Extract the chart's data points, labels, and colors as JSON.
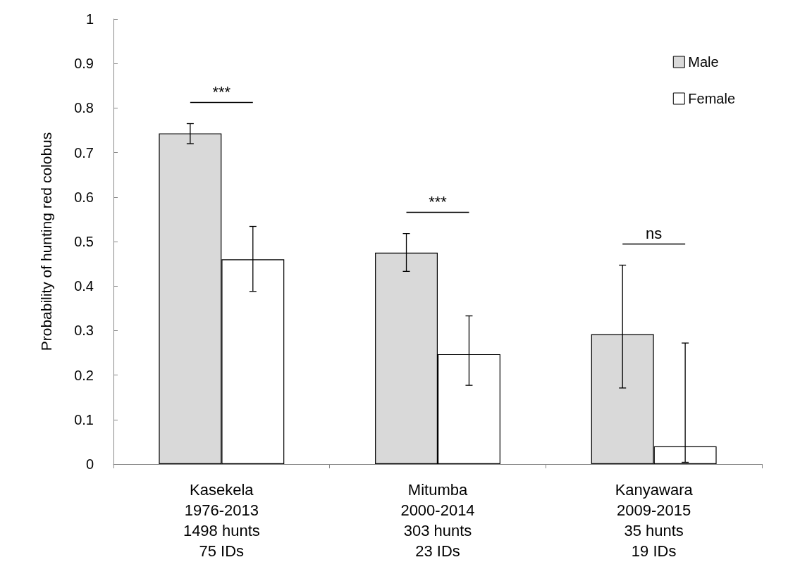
{
  "chart_data": {
    "type": "bar",
    "ylabel": "Probability of hunting red colobus",
    "categories": [
      "Kasekela\n1976-2013\n1498 hunts\n75 IDs",
      "Mitumba\n2000-2014\n303 hunts\n23 IDs",
      "Kanyawara\n2009-2015\n35 hunts\n19 IDs"
    ],
    "series": [
      {
        "name": "Male",
        "color": "#d9d9d9",
        "values": [
          0.743,
          0.475,
          0.292
        ],
        "errors": [
          [
            0.72,
            0.765
          ],
          [
            0.433,
            0.518
          ],
          [
            0.171,
            0.447
          ]
        ]
      },
      {
        "name": "Female",
        "color": "#ffffff",
        "values": [
          0.46,
          0.247,
          0.04
        ],
        "errors": [
          [
            0.388,
            0.534
          ],
          [
            0.177,
            0.333
          ],
          [
            0.004,
            0.272
          ]
        ]
      }
    ],
    "annotations": [
      "***",
      "***",
      "ns"
    ],
    "ylim": [
      0,
      1
    ],
    "yticks": [
      0,
      0.1,
      0.2,
      0.3,
      0.4,
      0.5,
      0.6,
      0.7,
      0.8,
      0.9,
      1
    ],
    "grid": false,
    "legend": "top right"
  }
}
